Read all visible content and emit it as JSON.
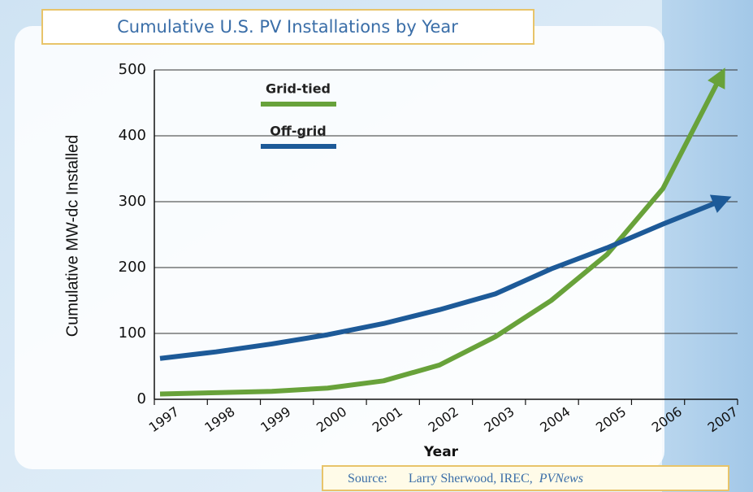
{
  "chart_data": {
    "type": "line",
    "title": "Cumulative U.S. PV Installations by Year",
    "x_label": "Year",
    "y_label": "Cumulative MW-dc Installed",
    "source_label": "Source:",
    "source": "Larry Sherwood, IREC,",
    "source_italic": "PVNews",
    "categories": [
      "1997",
      "1998",
      "1999",
      "2000",
      "2001",
      "2002",
      "2003",
      "2004",
      "2005",
      "2006",
      "2007"
    ],
    "series": [
      {
        "name": "Grid-tied",
        "color": "#68a23a",
        "values": [
          8,
          10,
          12,
          17,
          28,
          52,
          95,
          150,
          220,
          320,
          485
        ]
      },
      {
        "name": "Off-grid",
        "color": "#1d5a98",
        "values": [
          62,
          72,
          84,
          98,
          115,
          136,
          160,
          198,
          230,
          266,
          300
        ]
      }
    ],
    "ylim": [
      0,
      500
    ],
    "yticks": [
      0,
      100,
      200,
      300,
      400,
      500
    ],
    "grid": true
  }
}
